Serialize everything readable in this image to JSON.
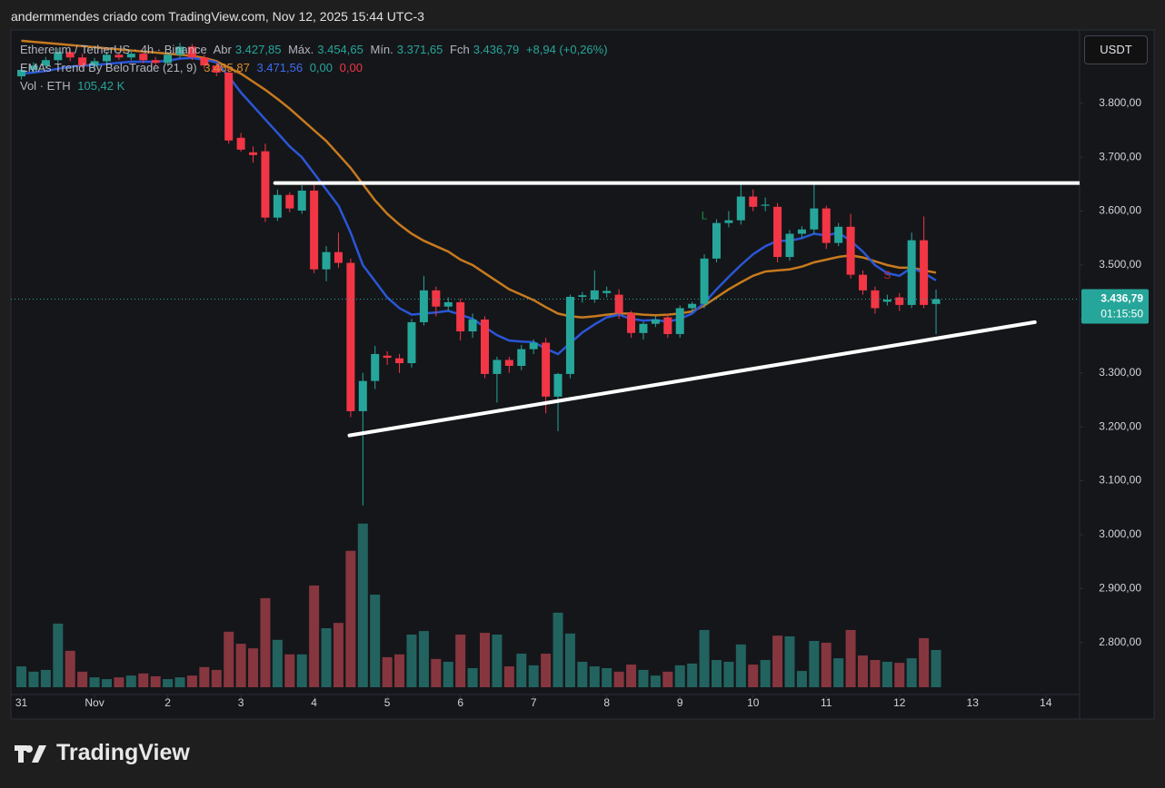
{
  "header": "andermmendes criado com TradingView.com, Nov 12, 2025 15:44 UTC-3",
  "brand": "TradingView",
  "chart_data": {
    "type": "candlestick",
    "title": "Ethereum / TetherUS · 4h · Binance",
    "legend": {
      "ohlc": [
        {
          "label": "Abr",
          "value": "3.427,85"
        },
        {
          "label": "Máx.",
          "value": "3.454,65"
        },
        {
          "label": "Mín.",
          "value": "3.371,65"
        },
        {
          "label": "Fch",
          "value": "3.436,79"
        }
      ],
      "change": "+8,94 (+0,26%)",
      "indicator": "EMAs Trend By BeloTrade (21, 9)",
      "indicator_values": [
        "3.485,87",
        "3.471,56",
        "0,00",
        "0,00"
      ],
      "volume": "Vol · ETH",
      "volume_value": "105,42 K"
    },
    "currency": "USDT",
    "last_price_label": "3.436,79",
    "countdown": "01:15:50",
    "colors": {
      "up": "#26a69a",
      "down": "#f23645",
      "volume_up": "#22635f",
      "volume_down": "#86363f"
    },
    "open": [
      3850,
      3862,
      3870,
      3880,
      3895,
      3885,
      3870,
      3878,
      3890,
      3885,
      3892,
      3880,
      3875,
      3890,
      3905,
      3885,
      3870,
      3857,
      3736,
      3709,
      3711,
      3588,
      3630,
      3601,
      3638,
      3492,
      3524,
      3504,
      3229,
      3285,
      3332,
      3327,
      3318,
      3394,
      3453,
      3423,
      3431,
      3377,
      3399,
      3298,
      3324,
      3313,
      3344,
      3356,
      3256,
      3298,
      3441,
      3436,
      3448,
      3445,
      3411,
      3374,
      3391,
      3403,
      3372,
      3420,
      3428,
      3512,
      3578,
      3583,
      3627,
      3610,
      3608,
      3515,
      3558,
      3566,
      3605,
      3541,
      3571,
      3482,
      3453,
      3432,
      3440,
      3426,
      3546,
      3427.85
    ],
    "high": [
      3868,
      3876,
      3886,
      3902,
      3900,
      3892,
      3884,
      3896,
      3895,
      3898,
      3898,
      3886,
      3895,
      3912,
      3910,
      3890,
      3876,
      3865,
      3745,
      3720,
      3725,
      3640,
      3635,
      3648,
      3655,
      3535,
      3560,
      3512,
      3300,
      3350,
      3340,
      3335,
      3400,
      3480,
      3460,
      3440,
      3438,
      3410,
      3405,
      3330,
      3330,
      3352,
      3362,
      3365,
      3300,
      3445,
      3450,
      3490,
      3460,
      3455,
      3415,
      3395,
      3405,
      3410,
      3425,
      3432,
      3520,
      3585,
      3600,
      3650,
      3640,
      3625,
      3615,
      3565,
      3572,
      3650,
      3610,
      3578,
      3595,
      3490,
      3460,
      3445,
      3448,
      3560,
      3590,
      3454.65
    ],
    "low": [
      3844,
      3856,
      3864,
      3874,
      3878,
      3865,
      3864,
      3872,
      3880,
      3880,
      3874,
      3868,
      3870,
      3884,
      3880,
      3864,
      3850,
      3725,
      3710,
      3690,
      3580,
      3582,
      3598,
      3595,
      3485,
      3470,
      3495,
      3218,
      3054,
      3270,
      3315,
      3300,
      3310,
      3388,
      3405,
      3415,
      3360,
      3365,
      3290,
      3245,
      3300,
      3305,
      3335,
      3225,
      3192,
      3290,
      3430,
      3430,
      3440,
      3400,
      3365,
      3362,
      3385,
      3365,
      3365,
      3413,
      3420,
      3505,
      3570,
      3575,
      3600,
      3600,
      3505,
      3508,
      3550,
      3558,
      3530,
      3535,
      3475,
      3445,
      3410,
      3425,
      3415,
      3420,
      3420,
      3371.65
    ],
    "close": [
      3862,
      3870,
      3880,
      3895,
      3885,
      3870,
      3878,
      3890,
      3885,
      3892,
      3880,
      3875,
      3890,
      3905,
      3885,
      3870,
      3857,
      3731,
      3714,
      3704,
      3588,
      3630,
      3605,
      3638,
      3492,
      3524,
      3504,
      3229,
      3285,
      3335,
      3328,
      3318,
      3394,
      3453,
      3423,
      3431,
      3377,
      3399,
      3298,
      3324,
      3313,
      3344,
      3356,
      3256,
      3298,
      3441,
      3444,
      3453,
      3452,
      3411,
      3374,
      3391,
      3399,
      3372,
      3420,
      3428,
      3512,
      3578,
      3583,
      3627,
      3608,
      3612,
      3515,
      3558,
      3566,
      3605,
      3541,
      3571,
      3482,
      3453,
      3420,
      3436,
      3426,
      3546,
      3426,
      3436.79
    ],
    "volume": [
      59,
      44,
      49,
      180,
      103,
      44,
      28,
      23,
      28,
      33,
      39,
      31,
      23,
      28,
      33,
      57,
      49,
      157,
      123,
      110,
      252,
      134,
      93,
      93,
      288,
      167,
      182,
      386,
      463,
      262,
      85,
      93,
      149,
      159,
      80,
      72,
      149,
      54,
      154,
      149,
      59,
      95,
      62,
      95,
      211,
      152,
      72,
      59,
      54,
      44,
      64,
      49,
      33,
      44,
      62,
      67,
      162,
      77,
      72,
      121,
      64,
      77,
      146,
      144,
      46,
      131,
      126,
      82,
      162,
      90,
      77,
      72,
      69,
      82,
      139,
      105.42
    ],
    "vlim": [
      0,
      1860
    ],
    "series": [
      {
        "color": "#c77a1e",
        "values": [
          3916,
          3914,
          3912,
          3910,
          3908,
          3906,
          3904,
          3902,
          3900,
          3898,
          3896,
          3894,
          3892,
          3890,
          3888,
          3884,
          3878,
          3866,
          3855,
          3840,
          3825,
          3808,
          3790,
          3770,
          3750,
          3730,
          3705,
          3680,
          3650,
          3620,
          3595,
          3575,
          3558,
          3545,
          3535,
          3525,
          3510,
          3500,
          3485,
          3470,
          3455,
          3445,
          3435,
          3422,
          3410,
          3405,
          3403,
          3405,
          3408,
          3410,
          3410,
          3408,
          3407,
          3408,
          3410,
          3414,
          3425,
          3440,
          3455,
          3468,
          3480,
          3488,
          3490,
          3492,
          3497,
          3505,
          3510,
          3515,
          3518,
          3514,
          3507,
          3500,
          3495,
          3495,
          3490,
          3485.87
        ]
      },
      {
        "color": "#2a56d6",
        "values": [
          3855,
          3857,
          3860,
          3864,
          3868,
          3870,
          3871,
          3873,
          3875,
          3877,
          3877,
          3877,
          3879,
          3883,
          3884,
          3881,
          3876,
          3850,
          3820,
          3795,
          3770,
          3745,
          3720,
          3700,
          3670,
          3640,
          3610,
          3560,
          3500,
          3470,
          3440,
          3420,
          3408,
          3410,
          3412,
          3415,
          3408,
          3400,
          3385,
          3370,
          3360,
          3358,
          3357,
          3345,
          3335,
          3355,
          3375,
          3390,
          3403,
          3408,
          3400,
          3397,
          3398,
          3395,
          3400,
          3410,
          3430,
          3455,
          3478,
          3500,
          3520,
          3535,
          3545,
          3545,
          3550,
          3558,
          3555,
          3560,
          3545,
          3525,
          3500,
          3485,
          3480,
          3495,
          3485,
          3471.56
        ]
      }
    ],
    "signals": [
      {
        "text": "L",
        "x": 56,
        "price": 3590,
        "color": "#1f8a4c"
      },
      {
        "text": "S",
        "x": 71,
        "price": 3480,
        "color": "#b02a35"
      }
    ],
    "trendlines": [
      {
        "x": [
          20.8,
          86.8
        ],
        "y": [
          3652,
          3652
        ]
      },
      {
        "x": [
          26.9,
          83.1
        ],
        "y": [
          3184,
          3394
        ]
      }
    ],
    "xlim": [
      -0.86,
      86.77
    ],
    "xticks": [
      {
        "value": 0,
        "label": "31"
      },
      {
        "value": 6,
        "label": "Nov"
      },
      {
        "value": 12,
        "label": "2"
      },
      {
        "value": 18,
        "label": "3"
      },
      {
        "value": 24,
        "label": "4"
      },
      {
        "value": 30,
        "label": "5"
      },
      {
        "value": 36,
        "label": "6"
      },
      {
        "value": 42,
        "label": "7"
      },
      {
        "value": 48,
        "label": "8"
      },
      {
        "value": 54,
        "label": "9"
      },
      {
        "value": 60,
        "label": "10"
      },
      {
        "value": 66,
        "label": "11"
      },
      {
        "value": 72,
        "label": "12"
      },
      {
        "value": 78,
        "label": "13"
      },
      {
        "value": 84,
        "label": "14"
      }
    ],
    "ylim": [
      2717,
      3936
    ],
    "yticks": [
      {
        "value": 2800,
        "label": "2.800,00"
      },
      {
        "value": 2900,
        "label": "2.900,00"
      },
      {
        "value": 3000,
        "label": "3.000,00"
      },
      {
        "value": 3100,
        "label": "3.100,00"
      },
      {
        "value": 3200,
        "label": "3.200,00"
      },
      {
        "value": 3300,
        "label": "3.300,00"
      },
      {
        "value": 3400,
        "label": "3.400,00"
      },
      {
        "value": 3500,
        "label": "3.500,00"
      },
      {
        "value": 3600,
        "label": "3.600,00"
      },
      {
        "value": 3700,
        "label": "3.700,00"
      },
      {
        "value": 3800,
        "label": "3.800,00"
      }
    ]
  }
}
